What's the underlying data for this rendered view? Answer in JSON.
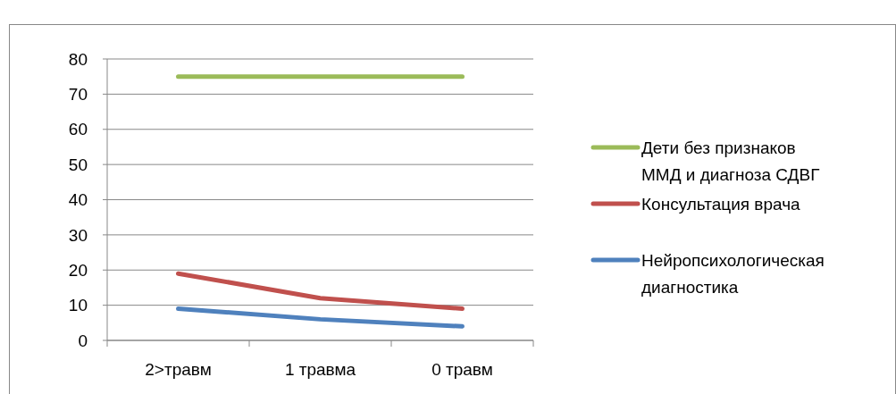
{
  "chart_data": {
    "type": "line",
    "categories": [
      "2>травм",
      "1 травма",
      "0 травм"
    ],
    "series": [
      {
        "name": "Дети без признаков ММД и диагноза СДВГ",
        "color": "#9bbb59",
        "values": [
          75,
          75,
          75
        ]
      },
      {
        "name": "Консультация врача",
        "color": "#c0504d",
        "values": [
          19,
          12,
          9
        ]
      },
      {
        "name": "Нейропсихологическая диагностика",
        "color": "#4f81bd",
        "values": [
          9,
          6,
          4
        ]
      }
    ],
    "ylim": [
      0,
      80
    ],
    "yticks": [
      0,
      10,
      20,
      30,
      40,
      50,
      60,
      70,
      80
    ],
    "grid": "y",
    "legend": "right",
    "marker": "none",
    "line_style": "solid"
  }
}
